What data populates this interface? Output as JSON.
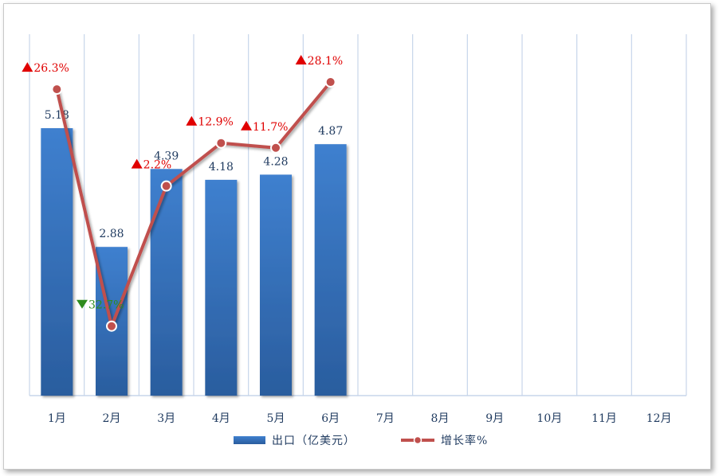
{
  "chart_data": {
    "type": "bar",
    "categories": [
      "1月",
      "2月",
      "3月",
      "4月",
      "5月",
      "6月",
      "7月",
      "8月",
      "9月",
      "10月",
      "11月",
      "12月"
    ],
    "series": [
      {
        "name": "出口（亿美元）",
        "type": "bar",
        "values": [
          5.18,
          2.88,
          4.39,
          4.18,
          4.28,
          4.87,
          null,
          null,
          null,
          null,
          null,
          null
        ],
        "labels": [
          "5.18",
          "2.88",
          "4.39",
          "4.18",
          "4.28",
          "4.87"
        ],
        "color": "#3a78c3"
      },
      {
        "name": "增长率%",
        "type": "line",
        "values": [
          26.3,
          -32.7,
          2.2,
          12.9,
          11.7,
          28.1,
          null,
          null,
          null,
          null,
          null,
          null
        ],
        "labels": [
          "26.3%",
          "32.7%",
          "2.2%",
          "12.9%",
          "11.7%",
          "28.1%"
        ],
        "directions": [
          "up",
          "down",
          "up",
          "up",
          "up",
          "up"
        ],
        "color": "#c0504d"
      }
    ],
    "legend": {
      "position": "bottom",
      "bar_label": "出口（亿美元）",
      "line_label": "增长率%"
    },
    "grid": "vertical",
    "colors": {
      "up": "#e00000",
      "down": "#2e8b1e",
      "axis_text": "#1f3a5f",
      "grid": "#c7d5ea"
    }
  }
}
